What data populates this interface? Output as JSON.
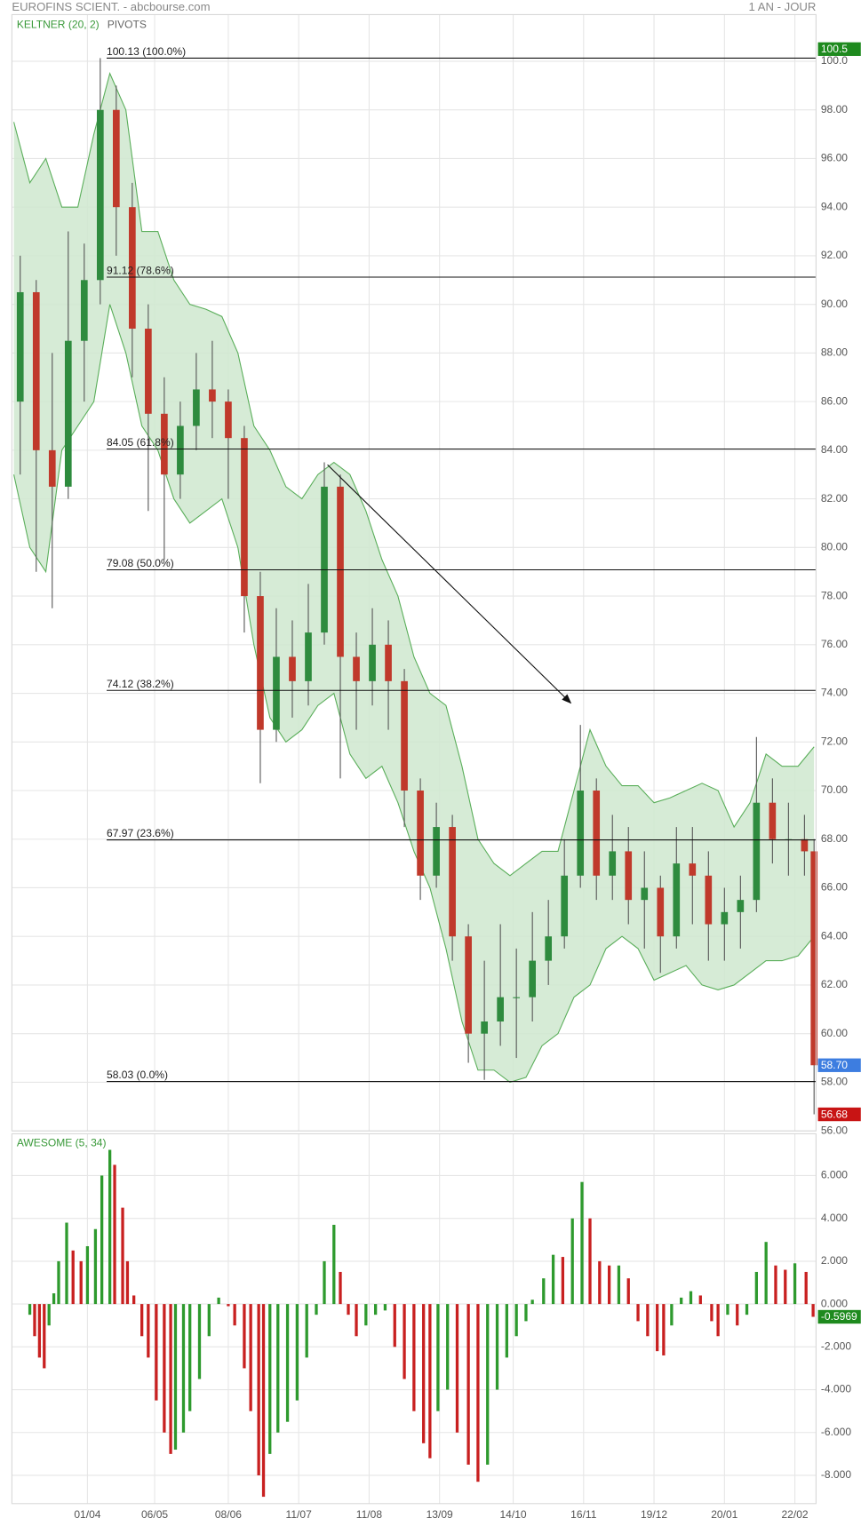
{
  "header": {
    "title": "EUROFINS SCIENT. - abcbourse.com",
    "period": "1 AN - JOUR"
  },
  "chart_data": [
    {
      "type": "candlestick",
      "xlim": [
        0,
        250
      ],
      "ylim": [
        56,
        101.92
      ],
      "yticks": [
        {
          "value": 100,
          "label": "100.0"
        },
        {
          "value": 98,
          "label": "98.00"
        },
        {
          "value": 96,
          "label": "96.00"
        },
        {
          "value": 94,
          "label": "94.00"
        },
        {
          "value": 92,
          "label": "92.00"
        },
        {
          "value": 90,
          "label": "90.00"
        },
        {
          "value": 88,
          "label": "88.00"
        },
        {
          "value": 86,
          "label": "86.00"
        },
        {
          "value": 84,
          "label": "84.00"
        },
        {
          "value": 82,
          "label": "82.00"
        },
        {
          "value": 80,
          "label": "80.00"
        },
        {
          "value": 78,
          "label": "78.00"
        },
        {
          "value": 76,
          "label": "76.00"
        },
        {
          "value": 74,
          "label": "74.00"
        },
        {
          "value": 72,
          "label": "72.00"
        },
        {
          "value": 70,
          "label": "70.00"
        },
        {
          "value": 68,
          "label": "68.00"
        },
        {
          "value": 66,
          "label": "66.00"
        },
        {
          "value": 64,
          "label": "64.00"
        },
        {
          "value": 62,
          "label": "62.00"
        },
        {
          "value": 60,
          "label": "60.00"
        },
        {
          "value": 58,
          "label": "58.00"
        },
        {
          "value": 56,
          "label": "56.00"
        }
      ],
      "grid": true,
      "up_color": "#2e8b3e",
      "down_color": "#c0392b",
      "x": [
        2,
        7,
        12,
        17,
        22,
        27,
        32,
        37,
        42,
        47,
        52,
        57,
        62,
        67,
        72,
        77,
        82,
        87,
        92,
        97,
        102,
        107,
        112,
        117,
        122,
        127,
        132,
        137,
        142,
        147,
        152,
        157,
        162,
        167,
        172,
        177,
        182,
        187,
        192,
        197,
        202,
        207,
        212,
        217,
        222,
        227,
        232,
        237,
        242,
        247,
        250
      ],
      "open": [
        86,
        90.5,
        84,
        82.5,
        88.5,
        91,
        98,
        94,
        89,
        85.5,
        83,
        85,
        86.5,
        86,
        84.5,
        78,
        72.5,
        75.5,
        74.5,
        76.5,
        82.5,
        75.5,
        74.5,
        76,
        74.5,
        70,
        66.5,
        68.5,
        64,
        60,
        60.5,
        61.5,
        61.5,
        63,
        64,
        66.5,
        70,
        66.5,
        67.5,
        65.5,
        66,
        64,
        67,
        66.5,
        64.5,
        65,
        65.5,
        69.5,
        68,
        68,
        67.5
      ],
      "high": [
        92,
        91,
        88,
        93,
        92.5,
        100.13,
        99,
        95,
        90,
        87,
        86,
        88,
        88.5,
        86.5,
        85,
        79,
        77.5,
        77,
        78.5,
        83.5,
        83,
        76.5,
        77.5,
        77,
        75,
        70.5,
        69.5,
        69,
        64.5,
        63,
        64.5,
        63.5,
        65,
        65.5,
        68,
        72.7,
        70.5,
        69,
        68.5,
        67.5,
        66.5,
        68.5,
        68.5,
        67.5,
        66,
        66.5,
        72.2,
        70.5,
        69.5,
        69,
        68
      ],
      "low": [
        83,
        79,
        77.5,
        82,
        86,
        90,
        92,
        87,
        81.5,
        79.5,
        82,
        84,
        84.5,
        82,
        76.5,
        70.3,
        72,
        73,
        73.5,
        76,
        70.5,
        72.5,
        73.5,
        72.5,
        68.5,
        65.5,
        66,
        63,
        58.8,
        58.1,
        59.5,
        59,
        60.5,
        62,
        63.5,
        66,
        65.5,
        65.5,
        64.5,
        63.5,
        62.5,
        63.5,
        64.5,
        63,
        63,
        63.5,
        65,
        67,
        66.5,
        66.5,
        56.68
      ],
      "close": [
        90.5,
        84,
        82.5,
        88.5,
        91,
        98,
        94,
        89,
        85.5,
        83,
        85,
        86.5,
        86,
        84.5,
        78,
        72.5,
        75.5,
        74.5,
        76.5,
        82.5,
        75.5,
        74.5,
        76,
        74.5,
        70,
        66.5,
        68.5,
        64,
        60,
        60.5,
        61.5,
        61.5,
        63,
        64,
        66.5,
        70,
        66.5,
        67.5,
        65.5,
        66,
        64,
        67,
        66.5,
        64.5,
        65,
        65.5,
        69.5,
        68,
        68,
        67.5,
        58.7
      ],
      "band": {
        "name": "KELTNER (20, 2)",
        "color": "#5aae5a",
        "fill": "#cfe8cf",
        "x": [
          0,
          5,
          10,
          15,
          20,
          25,
          30,
          35,
          40,
          45,
          50,
          55,
          60,
          65,
          70,
          75,
          80,
          85,
          90,
          95,
          100,
          105,
          110,
          115,
          120,
          125,
          130,
          135,
          140,
          145,
          150,
          155,
          160,
          165,
          170,
          175,
          180,
          185,
          190,
          195,
          200,
          205,
          210,
          215,
          220,
          225,
          230,
          235,
          240,
          245,
          250
        ],
        "upper": [
          97.5,
          95,
          96,
          94,
          94,
          97,
          99.5,
          98,
          93,
          93,
          91,
          90,
          89.8,
          89.5,
          88,
          85,
          84,
          82.5,
          82,
          83,
          83.5,
          83,
          81.5,
          79.5,
          78,
          75.5,
          74,
          73.5,
          71,
          68,
          67,
          66.5,
          67,
          67.5,
          67.5,
          70,
          72.5,
          71,
          70.2,
          70.2,
          69.5,
          69.7,
          70,
          70.3,
          70,
          68.5,
          69.5,
          71.5,
          71,
          71,
          71.8
        ],
        "lower": [
          83,
          80,
          79,
          84,
          85,
          86,
          90,
          88,
          85,
          84,
          82,
          81,
          81.5,
          82,
          80,
          76,
          73,
          72,
          72.5,
          73.5,
          74,
          71.5,
          70.5,
          71,
          69.5,
          67.5,
          66,
          63.5,
          60.5,
          58.5,
          58.5,
          58,
          58.2,
          59.5,
          60,
          61.5,
          62,
          63.5,
          64,
          63.5,
          62.2,
          62.5,
          62.8,
          62,
          61.8,
          62,
          62.5,
          63,
          63,
          63.2,
          64
        ]
      },
      "pivots": {
        "name": "PIVOTS",
        "start": 29,
        "levels": [
          {
            "value": 100.13,
            "label": "100.13  (100.0%)"
          },
          {
            "value": 91.12,
            "label": "91.12  (78.6%)"
          },
          {
            "value": 84.05,
            "label": "84.05  (61.8%)"
          },
          {
            "value": 79.08,
            "label": "79.08  (50.0%)"
          },
          {
            "value": 74.12,
            "label": "74.12  (38.2%)"
          },
          {
            "value": 67.97,
            "label": "67.97  (23.6%)"
          },
          {
            "value": 58.03,
            "label": "58.03  (0.0%)"
          }
        ]
      },
      "arrow": {
        "x": [
          98,
          174
        ],
        "y": [
          83.4,
          73.6
        ]
      },
      "badges": [
        {
          "value": 100.5,
          "color": "#1e8a1e"
        },
        {
          "value": 58.7,
          "label": "58.70",
          "color": "#3d7de0"
        },
        {
          "value": 56.68,
          "color": "#c81414"
        }
      ]
    },
    {
      "type": "bar",
      "title": "AWESOME (5, 34)",
      "xlim": [
        0,
        250
      ],
      "ylim": [
        -9.32,
        7.95
      ],
      "xticks": [
        {
          "value": 23,
          "label": "01/04"
        },
        {
          "value": 44,
          "label": "06/05"
        },
        {
          "value": 67,
          "label": "08/06"
        },
        {
          "value": 89,
          "label": "11/07"
        },
        {
          "value": 111,
          "label": "11/08"
        },
        {
          "value": 133,
          "label": "13/09"
        },
        {
          "value": 156,
          "label": "14/10"
        },
        {
          "value": 178,
          "label": "16/11"
        },
        {
          "value": 200,
          "label": "19/12"
        },
        {
          "value": 222,
          "label": "20/01"
        },
        {
          "value": 244,
          "label": "22/02"
        }
      ],
      "yticks": [
        {
          "value": 6,
          "label": "6.000"
        },
        {
          "value": 4,
          "label": "4.000"
        },
        {
          "value": 2,
          "label": "2.000"
        },
        {
          "value": 0,
          "label": "0.000"
        },
        {
          "value": -2,
          "label": "-2.000"
        },
        {
          "value": -4,
          "label": "-4.000"
        },
        {
          "value": -6,
          "label": "-6.000"
        },
        {
          "value": -8,
          "label": "-8.000"
        }
      ],
      "grid": true,
      "up_color": "#2e9a2e",
      "down_color": "#c82020",
      "x": [
        5,
        6.5,
        8,
        9.5,
        11,
        12.5,
        14,
        16.5,
        18.5,
        21,
        23,
        25.5,
        27.5,
        30,
        31.5,
        34,
        35.5,
        37.5,
        40,
        42,
        44.5,
        47,
        49,
        50.5,
        53,
        55,
        58,
        61,
        64,
        67,
        69,
        72,
        74,
        76.5,
        78,
        80,
        82.5,
        85.5,
        88.5,
        91.5,
        94.5,
        97,
        100,
        102,
        104.5,
        107,
        110,
        113,
        116,
        119,
        122,
        125,
        128,
        130,
        132.5,
        135.5,
        138.5,
        142,
        145,
        148,
        151,
        154,
        157,
        160,
        162,
        165.5,
        168.5,
        171.5,
        174.5,
        177.5,
        180,
        183,
        186,
        189,
        192,
        195,
        198,
        201,
        203,
        205.5,
        208.5,
        211.5,
        214.5,
        218,
        220,
        223,
        226,
        229,
        232,
        235,
        238,
        241,
        244,
        247.5,
        249.7
      ],
      "values": [
        -0.5,
        -1.5,
        -2.5,
        -3,
        -1,
        0.5,
        2,
        3.8,
        2.5,
        2,
        2.7,
        3.5,
        6,
        7.2,
        6.5,
        4.5,
        2,
        0.4,
        -1.5,
        -2.5,
        -4.5,
        -6,
        -7,
        -6.8,
        -6,
        -5,
        -3.5,
        -1.5,
        0.3,
        -0.1,
        -1,
        -3,
        -5,
        -8,
        -9,
        -7,
        -6,
        -5.5,
        -4.5,
        -2.5,
        -0.5,
        2,
        3.7,
        1.5,
        -0.5,
        -1.5,
        -1,
        -0.5,
        -0.3,
        -2,
        -3.5,
        -5,
        -6.5,
        -7.2,
        -5,
        -4,
        -6,
        -7.5,
        -8.3,
        -7.5,
        -4,
        -2.5,
        -1.5,
        -0.8,
        0.2,
        1.2,
        2.3,
        2.2,
        4,
        5.7,
        4,
        2,
        1.8,
        1.8,
        1.2,
        -0.8,
        -1.5,
        -2.2,
        -2.4,
        -1,
        0.3,
        0.6,
        0.4,
        -0.8,
        -1.5,
        -0.5,
        -1,
        -0.5,
        1.5,
        2.9,
        1.8,
        1.6,
        1.9,
        1.5,
        -0.5969
      ],
      "badges": [
        {
          "value": -0.5969,
          "color": "#1e8a1e"
        }
      ]
    }
  ]
}
